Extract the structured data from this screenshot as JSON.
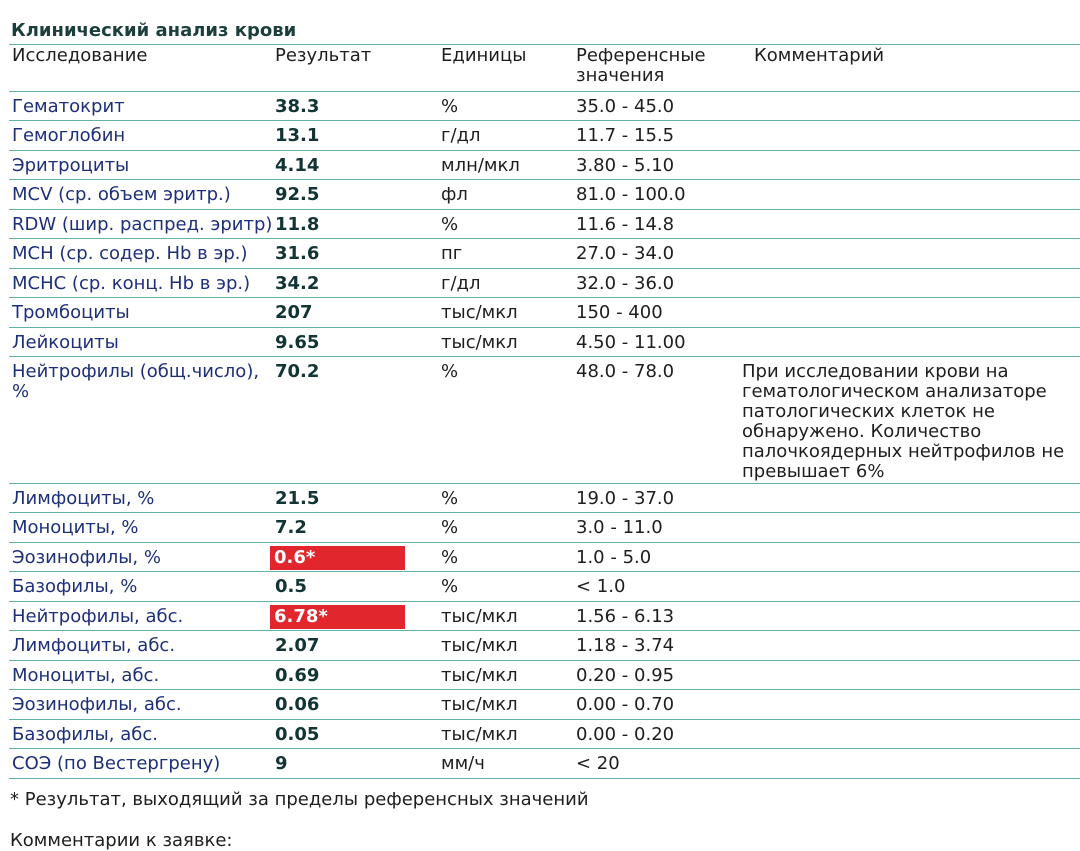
{
  "title": "Клинический анализ крови",
  "headers": {
    "name": "Исследование",
    "result": "Результат",
    "units": "Единицы",
    "reference": "Референсные значения",
    "comment": "Комментарий"
  },
  "rows": [
    {
      "name": "Гематокрит",
      "result": "38.3",
      "units": "%",
      "reference": "35.0 - 45.0",
      "comment": "",
      "flagged": false
    },
    {
      "name": "Гемоглобин",
      "result": "13.1",
      "units": "г/дл",
      "reference": "11.7 - 15.5",
      "comment": "",
      "flagged": false
    },
    {
      "name": "Эритроциты",
      "result": "4.14",
      "units": "млн/мкл",
      "reference": "3.80 - 5.10",
      "comment": "",
      "flagged": false
    },
    {
      "name": "MCV (ср. объем эритр.)",
      "result": "92.5",
      "units": "фл",
      "reference": "81.0 - 100.0",
      "comment": "",
      "flagged": false
    },
    {
      "name": "RDW (шир. распред. эритр)",
      "result": "11.8",
      "units": "%",
      "reference": "11.6 - 14.8",
      "comment": "",
      "flagged": false
    },
    {
      "name": "MCH (ср. содер. Hb в эр.)",
      "result": "31.6",
      "units": "пг",
      "reference": "27.0 - 34.0",
      "comment": "",
      "flagged": false
    },
    {
      "name": "MCHC (ср. конц. Hb в эр.)",
      "result": "34.2",
      "units": "г/дл",
      "reference": "32.0 - 36.0",
      "comment": "",
      "flagged": false
    },
    {
      "name": "Тромбоциты",
      "result": "207",
      "units": "тыс/мкл",
      "reference": "150 - 400",
      "comment": "",
      "flagged": false
    },
    {
      "name": "Лейкоциты",
      "result": "9.65",
      "units": "тыс/мкл",
      "reference": "4.50 - 11.00",
      "comment": "",
      "flagged": false
    },
    {
      "name": "Нейтрофилы (общ.число), %",
      "result": "70.2",
      "units": "%",
      "reference": "48.0 - 78.0",
      "comment": "При исследовании крови на гематологическом анализаторе патологических клеток не обнаружено. Количество палочкоядерных нейтрофилов не превышает 6%",
      "flagged": false
    },
    {
      "name": "Лимфоциты, %",
      "result": "21.5",
      "units": "%",
      "reference": "19.0 - 37.0",
      "comment": "",
      "flagged": false
    },
    {
      "name": "Моноциты, %",
      "result": "7.2",
      "units": "%",
      "reference": "3.0 - 11.0",
      "comment": "",
      "flagged": false
    },
    {
      "name": "Эозинофилы, %",
      "result": "0.6*",
      "units": "%",
      "reference": "1.0 - 5.0",
      "comment": "",
      "flagged": true
    },
    {
      "name": "Базофилы, %",
      "result": "0.5",
      "units": "%",
      "reference": "< 1.0",
      "comment": "",
      "flagged": false
    },
    {
      "name": "Нейтрофилы, абс.",
      "result": "6.78*",
      "units": "тыс/мкл",
      "reference": "1.56 - 6.13",
      "comment": "",
      "flagged": true
    },
    {
      "name": "Лимфоциты, абс.",
      "result": "2.07",
      "units": "тыс/мкл",
      "reference": "1.18 - 3.74",
      "comment": "",
      "flagged": false
    },
    {
      "name": "Моноциты, абс.",
      "result": "0.69",
      "units": "тыс/мкл",
      "reference": "0.20 - 0.95",
      "comment": "",
      "flagged": false
    },
    {
      "name": "Эозинофилы, абс.",
      "result": "0.06",
      "units": "тыс/мкл",
      "reference": "0.00 - 0.70",
      "comment": "",
      "flagged": false
    },
    {
      "name": "Базофилы, абс.",
      "result": "0.05",
      "units": "тыс/мкл",
      "reference": "0.00 - 0.20",
      "comment": "",
      "flagged": false
    },
    {
      "name": "СОЭ (по Вестергрену)",
      "result": "9",
      "units": "мм/ч",
      "reference": "< 20",
      "comment": "",
      "flagged": false
    }
  ],
  "footnote": "* Результат, выходящий за пределы референсных значений",
  "order_comments_label": "Комментарии к заявке:",
  "colors": {
    "flag": "#e1262d",
    "rule": "#5fb3a9",
    "name_text": "#1e2f7a"
  }
}
